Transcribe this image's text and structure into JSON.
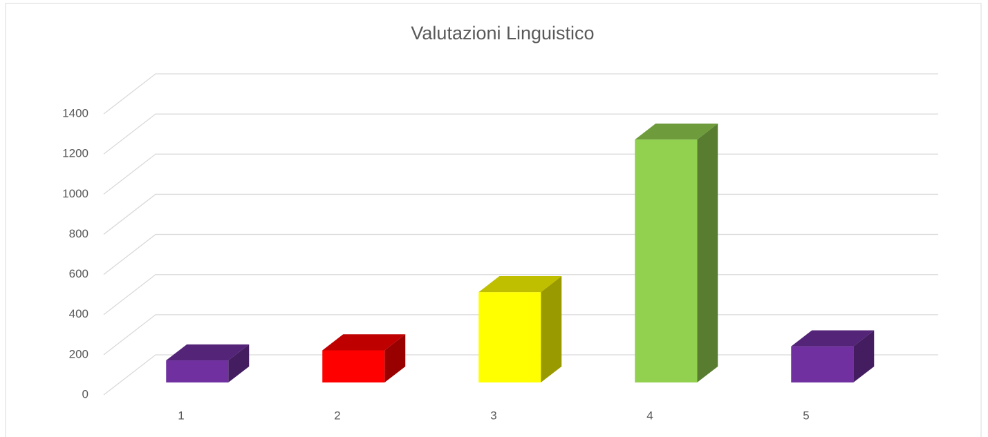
{
  "chart_data": {
    "type": "bar3d",
    "title": "Valutazioni Linguistico",
    "categories": [
      "1",
      "2",
      "3",
      "4",
      "5"
    ],
    "values": [
      110,
      160,
      450,
      1210,
      180
    ],
    "colors": [
      "#7030a0",
      "#ff0000",
      "#ffff00",
      "#92d050",
      "#7030a0"
    ],
    "ylim": [
      0,
      1400
    ],
    "yticks": [
      0,
      200,
      400,
      600,
      800,
      1000,
      1200,
      1400
    ],
    "grid": true
  }
}
